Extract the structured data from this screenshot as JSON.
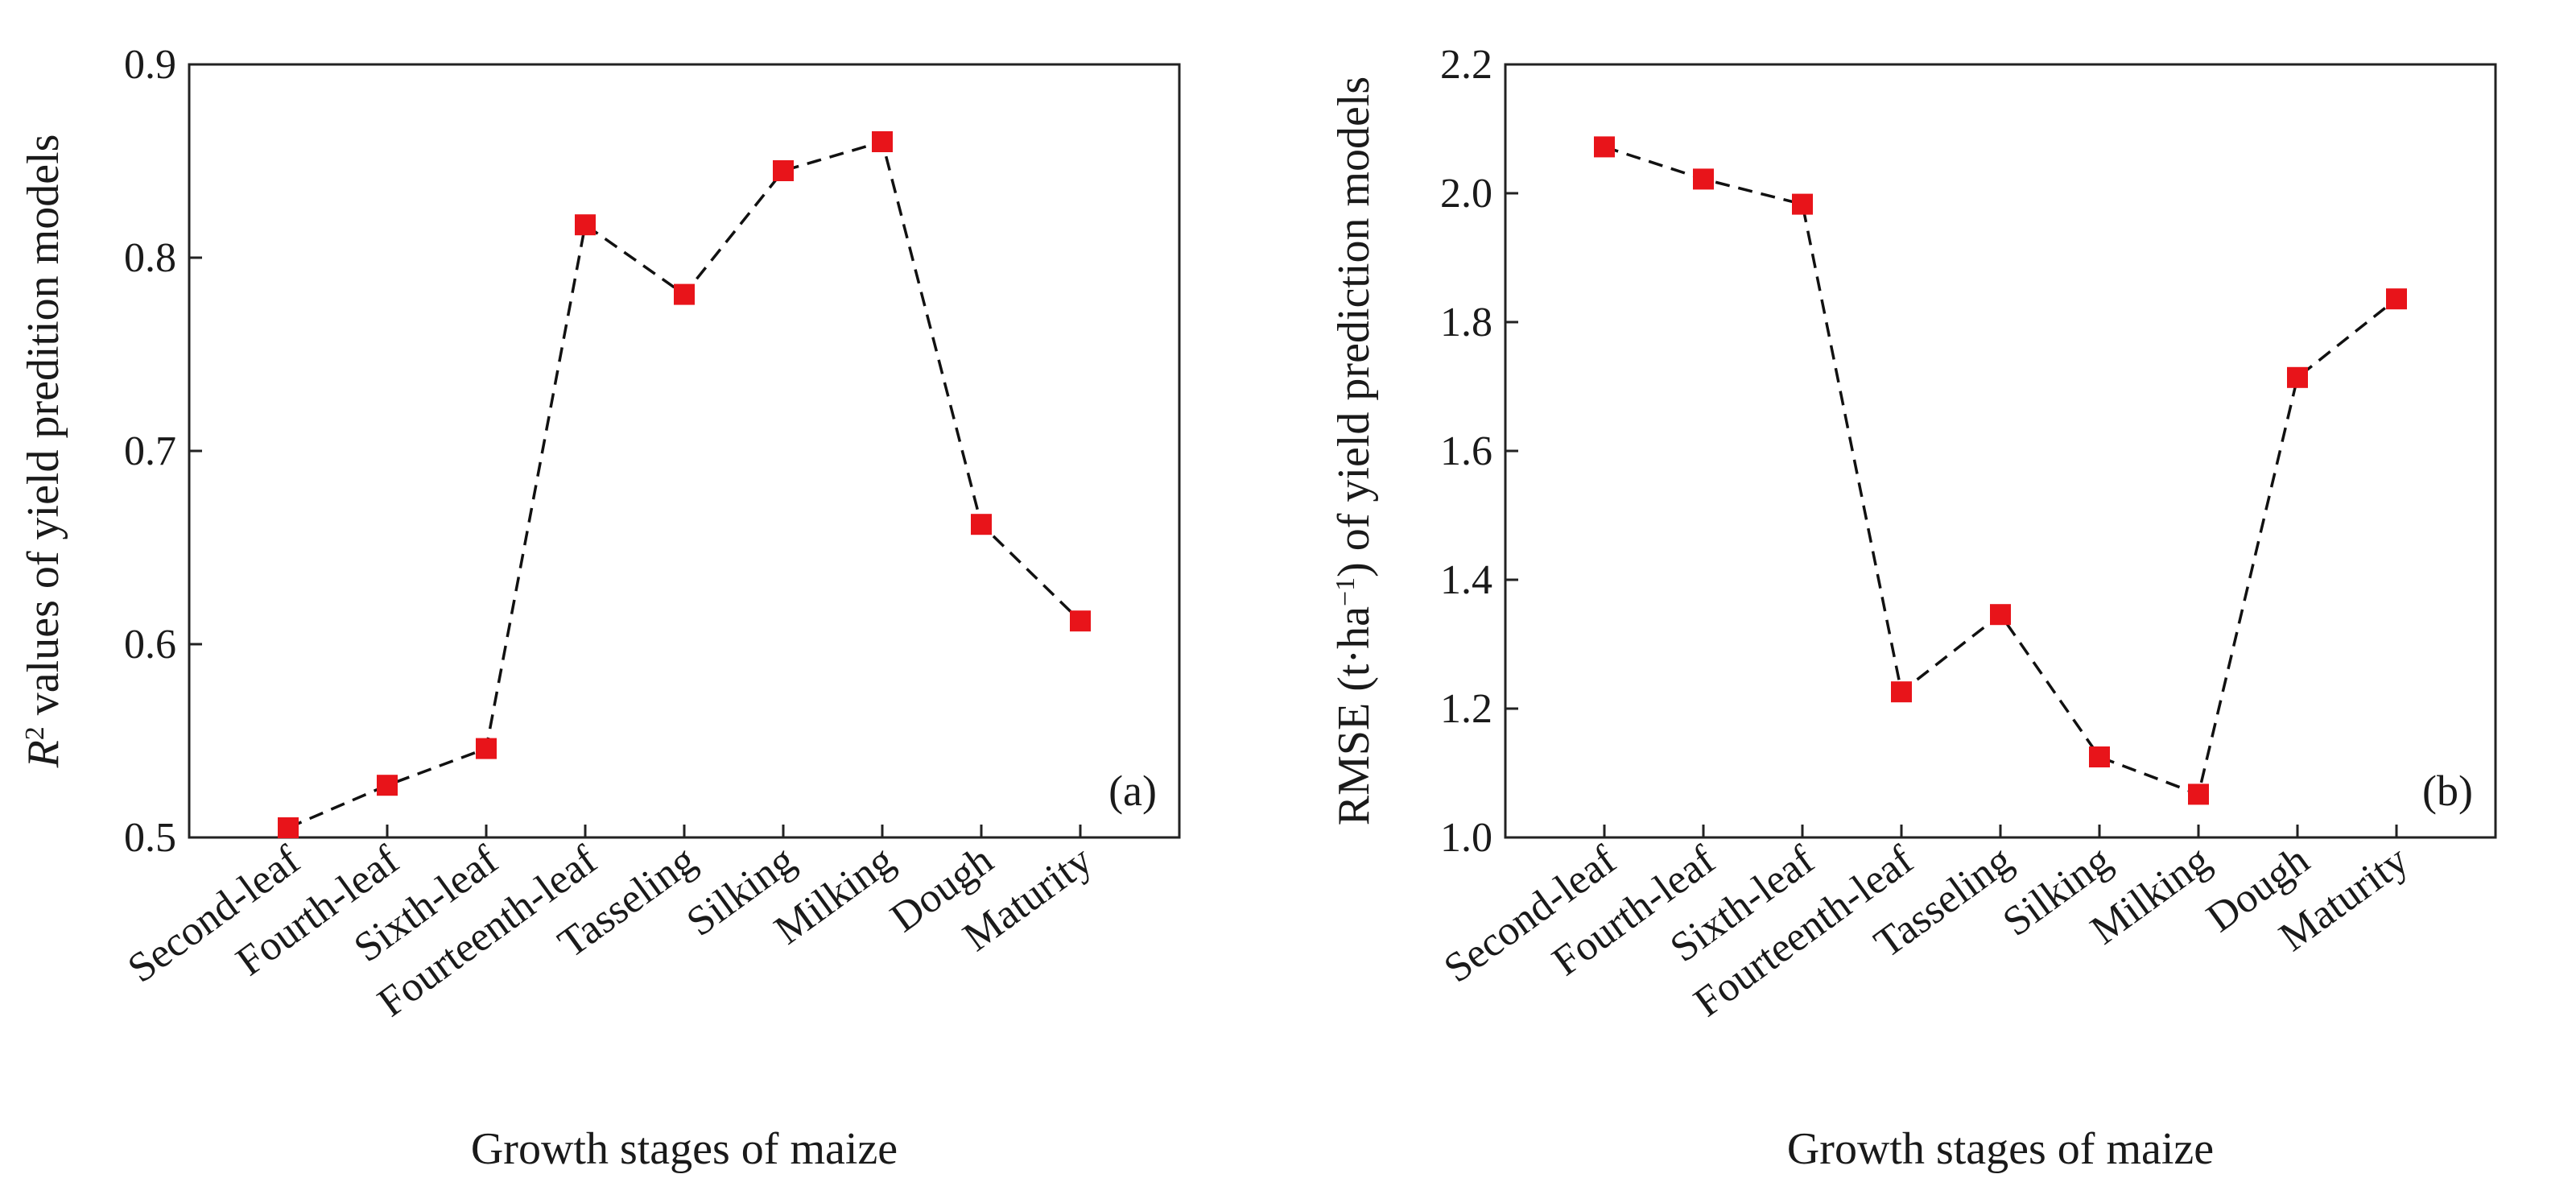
{
  "colors": {
    "marker": "#e8141a",
    "line": "#111111",
    "axis": "#222222",
    "background": "#ffffff"
  },
  "chart_data": [
    {
      "type": "line",
      "panel_label": "(a)",
      "xlabel": "Growth stages of maize",
      "ylabel_prefix": "R",
      "ylabel_sup": "2",
      "ylabel_suffix": " values of yield predition models",
      "categories": [
        "Second-leaf",
        "Fourth-leaf",
        "Sixth-leaf",
        "Fourteenth-leaf",
        "Tasseling",
        "Silking",
        "Milking",
        "Dough",
        "Maturity"
      ],
      "values": [
        0.505,
        0.527,
        0.546,
        0.817,
        0.781,
        0.845,
        0.86,
        0.662,
        0.612
      ],
      "ylim": [
        0.5,
        0.9
      ],
      "yticks": [
        "0.5",
        "0.6",
        "0.7",
        "0.8",
        "0.9"
      ],
      "grid": false,
      "line_style": "dashed",
      "marker": "square"
    },
    {
      "type": "line",
      "panel_label": "(b)",
      "xlabel": "Growth stages of maize",
      "ylabel_prefix": "RMSE (t·ha",
      "ylabel_sup": "−1",
      "ylabel_suffix": ") of yield prediction models",
      "categories": [
        "Second-leaf",
        "Fourth-leaf",
        "Sixth-leaf",
        "Fourteenth-leaf",
        "Tasseling",
        "Silking",
        "Milking",
        "Dough",
        "Maturity"
      ],
      "values": [
        2.072,
        2.022,
        1.983,
        1.226,
        1.346,
        1.125,
        1.067,
        1.714,
        1.836
      ],
      "ylim": [
        1.0,
        2.2
      ],
      "yticks": [
        "1.0",
        "1.2",
        "1.4",
        "1.6",
        "1.8",
        "2.0",
        "2.2"
      ],
      "grid": false,
      "line_style": "dashed",
      "marker": "square"
    }
  ]
}
